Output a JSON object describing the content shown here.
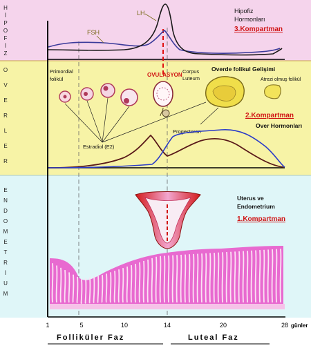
{
  "side_labels": {
    "hipofiz": [
      "H",
      "İ",
      "P",
      "O",
      "F",
      "İ",
      "Z"
    ],
    "overler": [
      "O",
      "V",
      "E",
      "R",
      "L",
      "E",
      "R"
    ],
    "endometrium": [
      "E",
      "N",
      "D",
      "O",
      "M",
      "E",
      "T",
      "R",
      "İ",
      "U",
      "M"
    ]
  },
  "hormone_labels": {
    "fsh": "FSH",
    "lh": "LH",
    "hipofiz_title_1": "Hipofiz",
    "hipofiz_title_2": "Hormonları",
    "compartment_3": "3.Kompartman"
  },
  "ovary": {
    "ovulasyon": "OVULASYON",
    "corpus_1": "Corpus",
    "corpus_2": "Luteum",
    "primordial_1": "Primordial",
    "primordial_2": "folikül",
    "development_title": "Overde folikul Gelişimi",
    "atrezi_1": "Atrezi olmuş folikül",
    "compartment_2": "2.Kompartman",
    "hormones_title": "Over Hormonları",
    "progesteron": "Progesteron",
    "estradiol": "Estradiol (E2)"
  },
  "uterus": {
    "title_1": "Uterus ve",
    "title_2": "Endometrium",
    "compartment_1": "1.Kompartman"
  },
  "axis": {
    "ticks": [
      "1",
      "5",
      "10",
      "14",
      "20",
      "28"
    ],
    "unit": "günler",
    "follicular": "Folliküler Faz",
    "luteal": "Luteal Faz"
  },
  "colors": {
    "hipofiz_bg": "#f5d4ec",
    "over_bg": "#f7f3a6",
    "endometrium_bg": "#dff6f8",
    "compartment_red": "#d01414",
    "endometrium_pink": "#e86ad0"
  }
}
